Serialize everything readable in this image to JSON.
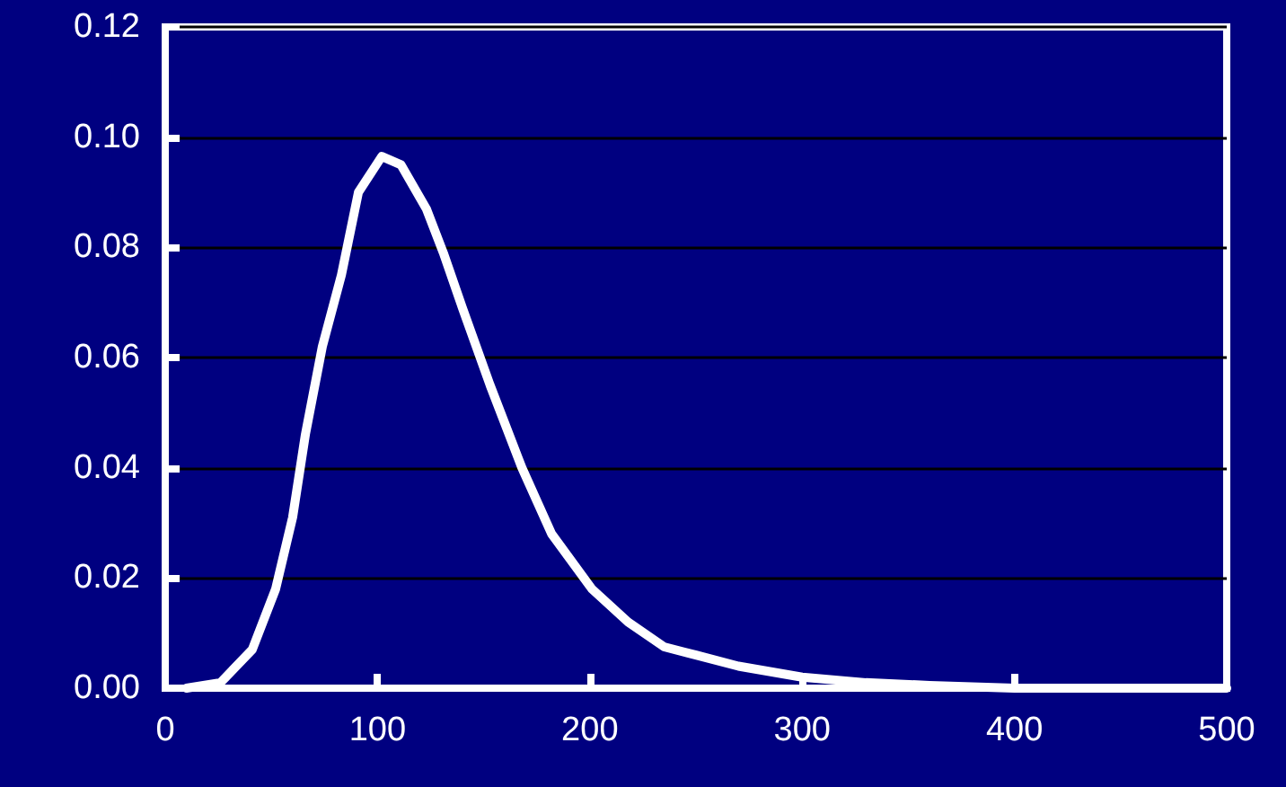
{
  "chart_data": {
    "type": "line",
    "x": [
      10,
      26,
      41,
      52,
      60,
      66,
      74,
      83,
      91,
      102,
      111,
      123,
      131,
      140,
      153,
      168,
      182,
      201,
      218,
      235,
      250,
      270,
      300,
      330,
      360,
      400,
      500
    ],
    "series": [
      {
        "color": "#ffffff",
        "values": [
          0,
          0.001,
          0.007,
          0.018,
          0.031,
          0.046,
          0.062,
          0.075,
          0.09,
          0.0965,
          0.095,
          0.087,
          0.079,
          0.069,
          0.055,
          0.04,
          0.028,
          0.018,
          0.012,
          0.0075,
          0.006,
          0.004,
          0.002,
          0.001,
          0.0005,
          0,
          0
        ]
      }
    ],
    "xlim": [
      0,
      500
    ],
    "xticks": [
      0,
      100,
      200,
      300,
      400,
      500
    ],
    "ylim": [
      0,
      0.12
    ],
    "yticks": [
      {
        "value": 0,
        "label": "0.00"
      },
      0.02,
      0.04,
      0.06,
      0.08,
      {
        "value": 0.1,
        "label": "0.10"
      },
      0.12
    ],
    "grid": "y",
    "marker": "none",
    "line_style": "solid"
  }
}
